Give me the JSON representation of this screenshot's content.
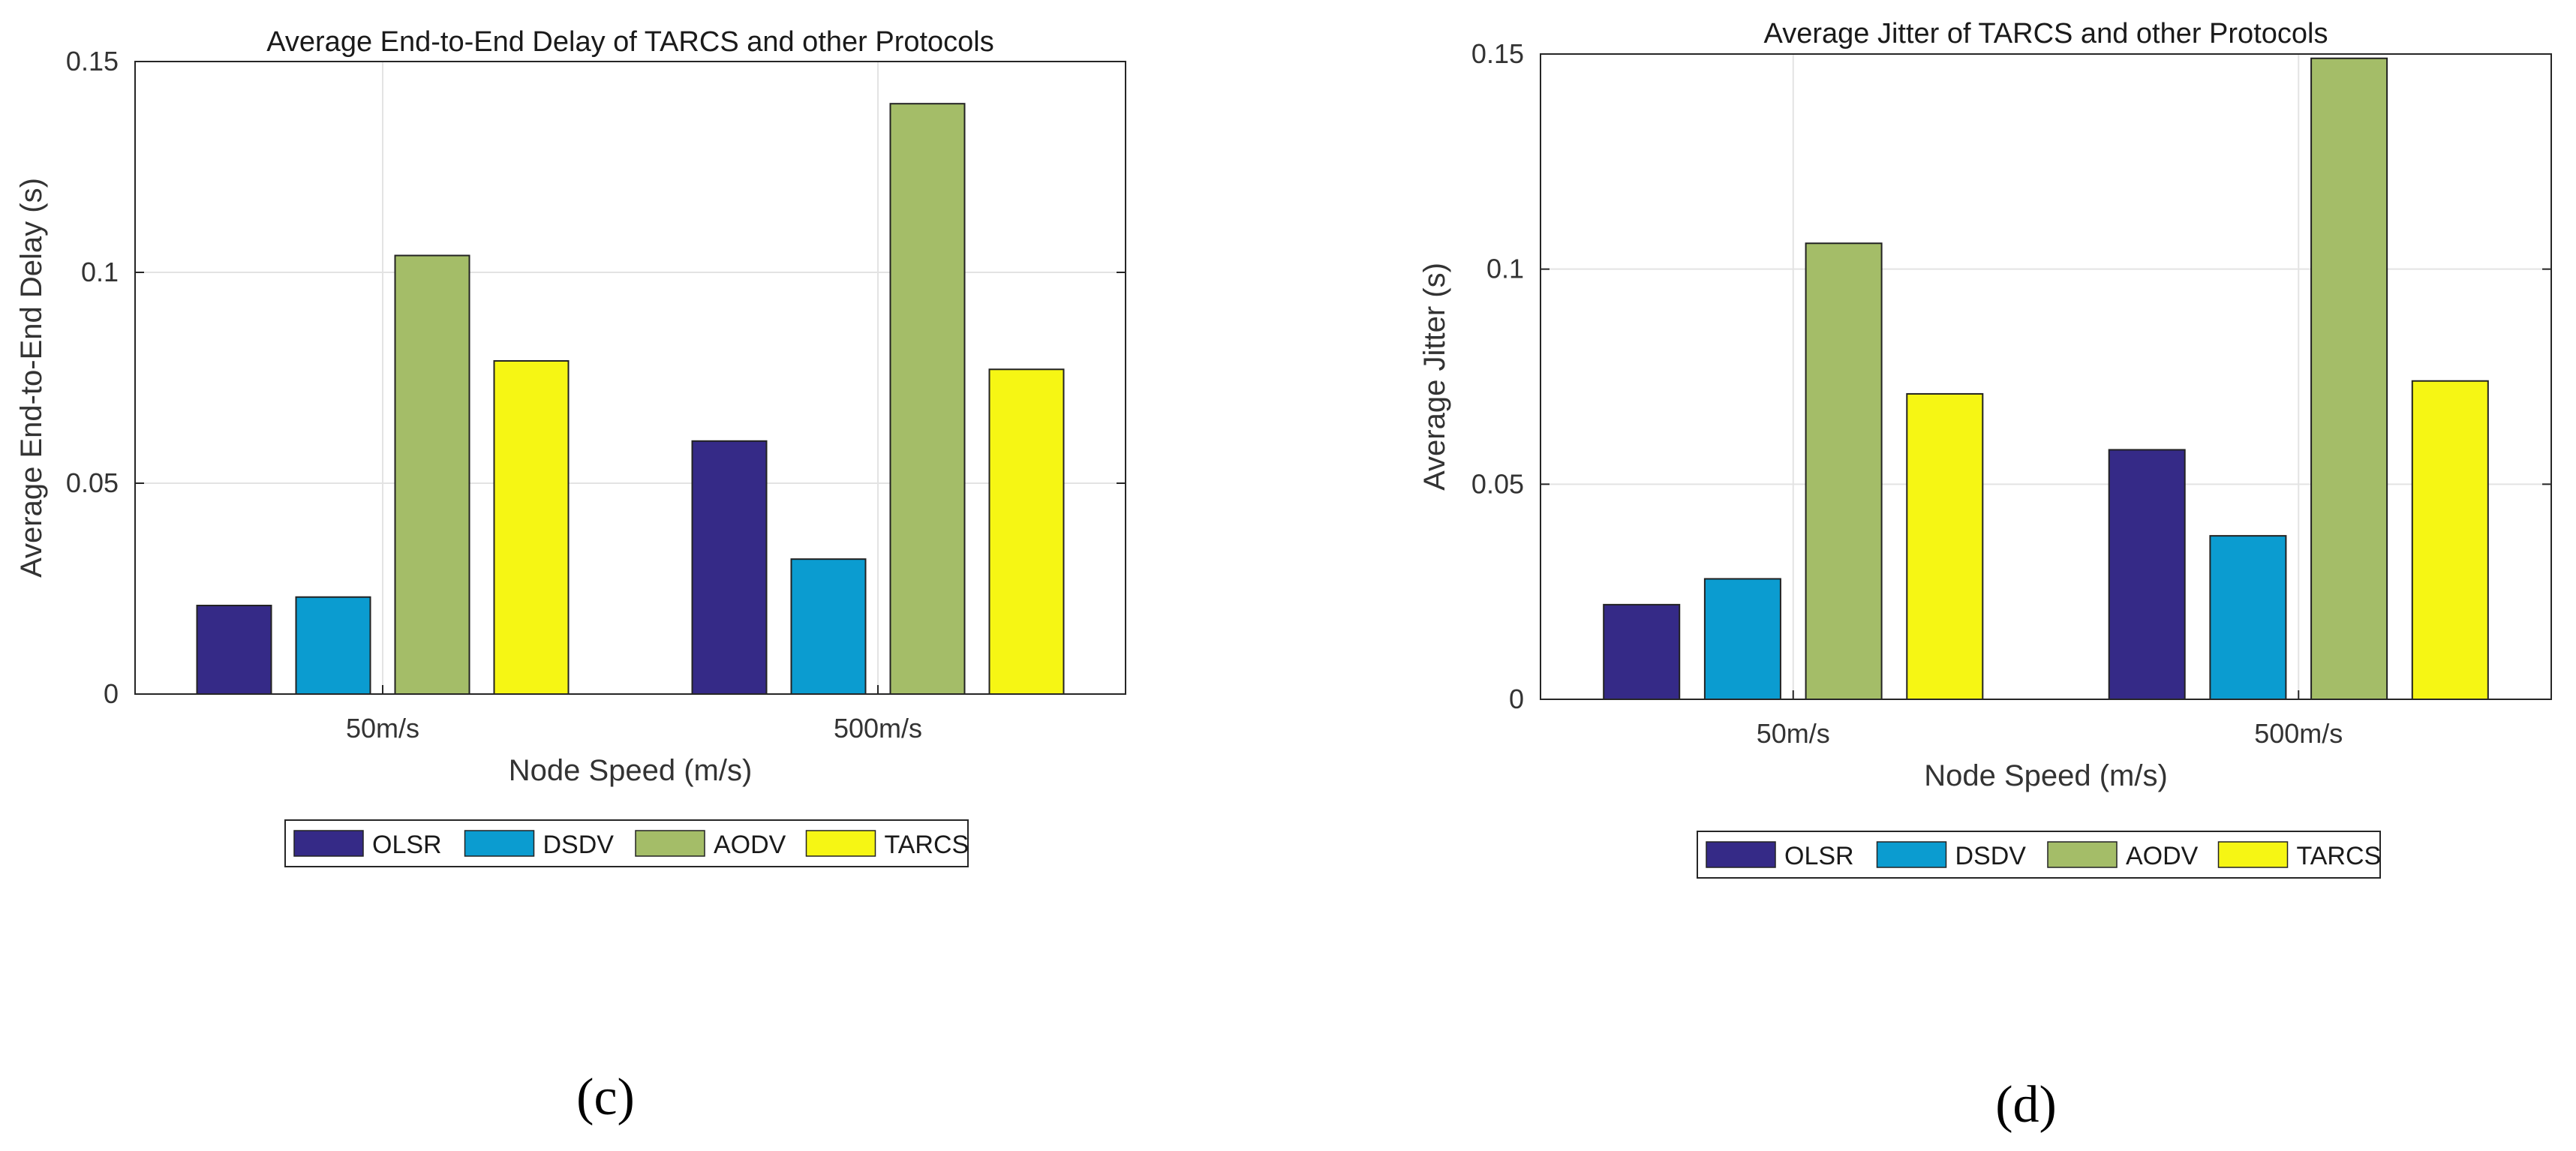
{
  "colors": {
    "OLSR": "#352a87",
    "DSDV": "#0b9cd0",
    "AODV": "#a4bd68",
    "TARCS": "#f6f614"
  },
  "panels": [
    {
      "label": "(c)"
    },
    {
      "label": "(d)"
    }
  ],
  "chart_data": [
    {
      "type": "bar",
      "title": "Average End-to-End Delay of TARCS and other Protocols",
      "xlabel": "Node Speed (m/s)",
      "ylabel": "Average End-to-End Delay (s)",
      "categories": [
        "50m/s",
        "500m/s"
      ],
      "ylim": [
        0,
        0.15
      ],
      "yticks": [
        0,
        0.05,
        0.1,
        0.15
      ],
      "ytick_labels": [
        "0",
        "0.05",
        "0.1",
        "0.15"
      ],
      "grid": true,
      "legend_position": "bottom-center",
      "series": [
        {
          "name": "OLSR",
          "values": [
            0.021,
            0.06
          ]
        },
        {
          "name": "DSDV",
          "values": [
            0.023,
            0.032
          ]
        },
        {
          "name": "AODV",
          "values": [
            0.104,
            0.14
          ]
        },
        {
          "name": "TARCS",
          "values": [
            0.079,
            0.077
          ]
        }
      ]
    },
    {
      "type": "bar",
      "title": "Average Jitter of TARCS and other Protocols",
      "xlabel": "Node Speed (m/s)",
      "ylabel": "Average Jitter (s)",
      "categories": [
        "50m/s",
        "500m/s"
      ],
      "ylim": [
        0,
        0.15
      ],
      "yticks": [
        0,
        0.05,
        0.1,
        0.15
      ],
      "ytick_labels": [
        "0",
        "0.05",
        "0.1",
        "0.15"
      ],
      "grid": true,
      "legend_position": "bottom-center",
      "series": [
        {
          "name": "OLSR",
          "values": [
            0.022,
            0.058
          ]
        },
        {
          "name": "DSDV",
          "values": [
            0.028,
            0.038
          ]
        },
        {
          "name": "AODV",
          "values": [
            0.106,
            0.149
          ]
        },
        {
          "name": "TARCS",
          "values": [
            0.071,
            0.074
          ]
        }
      ]
    }
  ]
}
